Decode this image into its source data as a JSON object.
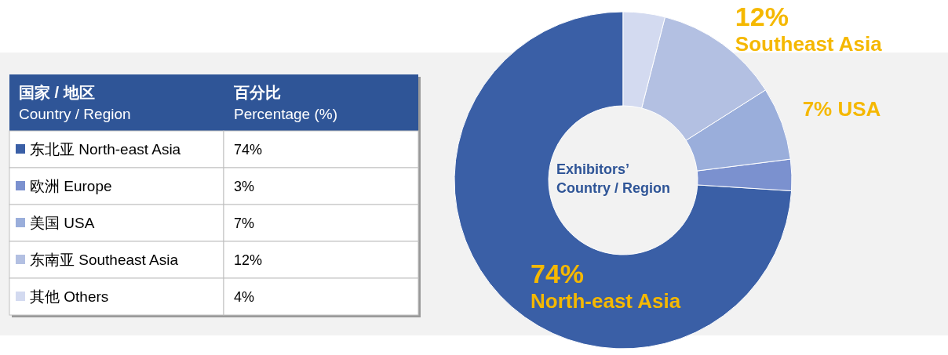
{
  "chart_data": {
    "type": "donut",
    "title": "Exhibitors’ Country / Region",
    "categories": [
      "东北亚 North-east Asia",
      "欧洲 Europe",
      "美国 USA",
      "东南亚 Southeast Asia",
      "其他 Others"
    ],
    "values": [
      74,
      3,
      7,
      12,
      4
    ],
    "colors": [
      "#3a5fa6",
      "#7b91cf",
      "#9aaedb",
      "#b3c0e2",
      "#d3daf0"
    ],
    "value_labels": [
      "74% North-east Asia",
      null,
      "7% USA",
      "12% Southeast Asia",
      null
    ],
    "annotations": [
      "国家 / 地区",
      "Country / Region",
      "百分比",
      "Percentage (%)",
      "74%",
      "3%",
      "7%",
      "12%",
      "4%"
    ],
    "legend": "left"
  }
}
